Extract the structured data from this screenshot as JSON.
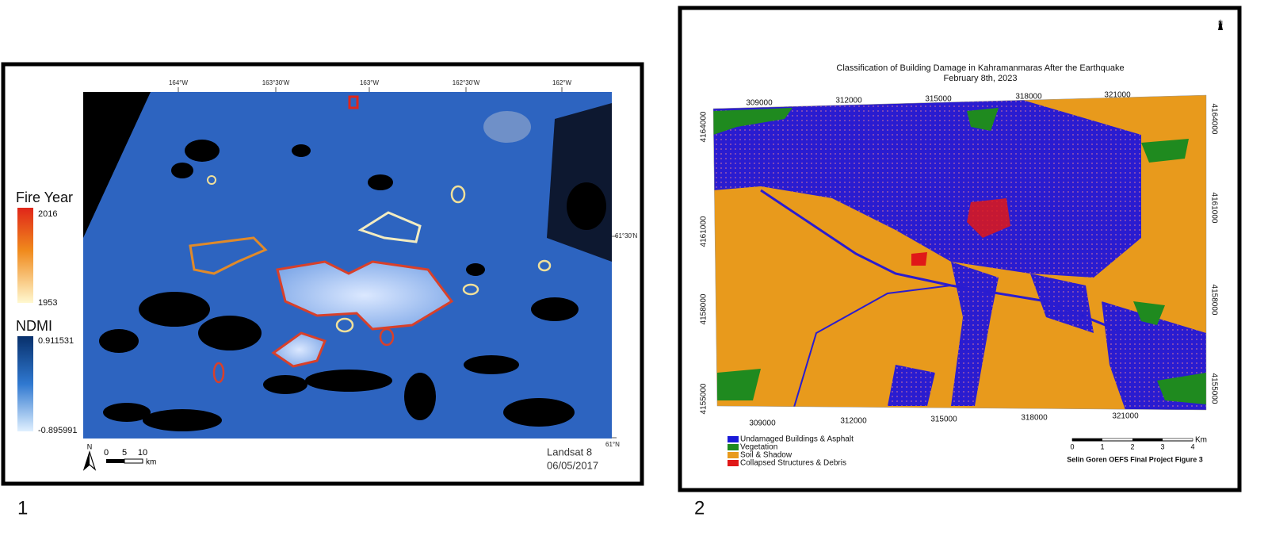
{
  "panels": [
    {
      "label": "1",
      "lon_labels": [
        "164°W",
        "163°30'W",
        "163°W",
        "162°30'W",
        "162°W"
      ],
      "lat_labels": [
        "61°30'N",
        "61°N"
      ],
      "legend": {
        "fire_title": "Fire Year",
        "fire_max": "2016",
        "fire_min": "1953",
        "ndmi_title": "NDMI",
        "ndmi_max": "0.911531",
        "ndmi_min": "-0.895991"
      },
      "north": "N",
      "scale_labels": [
        "0",
        "5",
        "10"
      ],
      "scale_unit": "km",
      "sensor": "Landsat 8",
      "date": "06/05/2017"
    },
    {
      "label": "2",
      "title": "Classification of Building Damage in Kahramanmaras After the Earthquake",
      "subtitle": "February 8th, 2023",
      "x_labels_top": [
        "309000",
        "312000",
        "315000",
        "318000",
        "321000"
      ],
      "x_labels_bottom": [
        "309000",
        "312000",
        "315000",
        "318000",
        "321000"
      ],
      "y_labels_left": [
        "4164000",
        "4161000",
        "4158000",
        "4155000"
      ],
      "y_labels_right": [
        "4164000",
        "4161000",
        "4158000",
        "4155000"
      ],
      "legend": [
        {
          "label": "Undamaged Buildings & Asphalt",
          "color": "#1a1ad8"
        },
        {
          "label": "Vegetation",
          "color": "#1f8a1f"
        },
        {
          "label": "Soil & Shadow",
          "color": "#e89a1c"
        },
        {
          "label": "Collapsed Structures & Debris",
          "color": "#e01818"
        }
      ],
      "north": "N",
      "scale_labels": [
        "0",
        "1",
        "2",
        "3",
        "4"
      ],
      "scale_unit": "Km",
      "credit": "Selin Goren OEFS Final Project Figure 3"
    }
  ]
}
